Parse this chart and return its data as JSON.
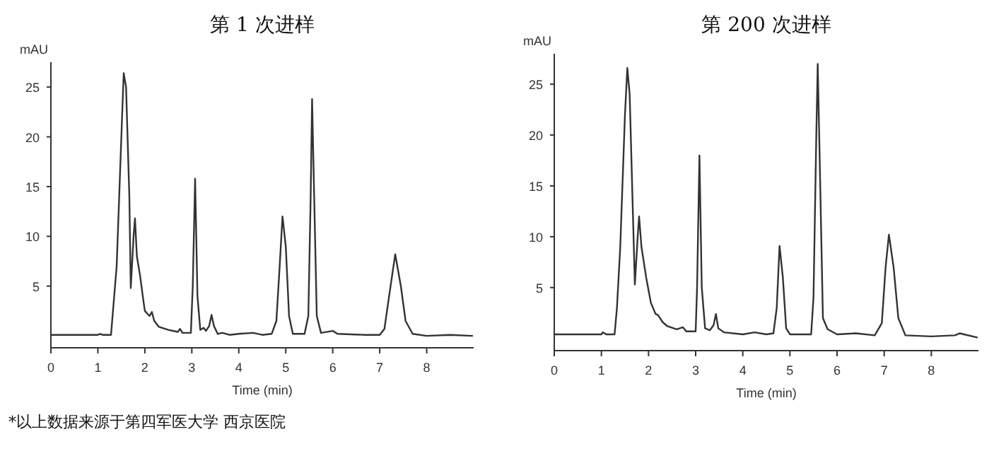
{
  "chart_data": [
    {
      "type": "line",
      "title": "第 1 次进样",
      "xlabel": "Time (min)",
      "ylabel": "mAU",
      "color": "#333333",
      "xlim": [
        0,
        9
      ],
      "ylim": [
        -1.2,
        27.5
      ],
      "xticks": [
        0,
        1,
        2,
        3,
        4,
        5,
        6,
        7,
        8
      ],
      "yticks": [
        5,
        10,
        15,
        20,
        25
      ],
      "annotations": [
        "*以上数据来源于第四军医大学  西京医院"
      ],
      "x": [
        0,
        1.0,
        1.05,
        1.1,
        1.28,
        1.33,
        1.4,
        1.5,
        1.55,
        1.6,
        1.67,
        1.7,
        1.76,
        1.79,
        1.83,
        1.9,
        1.97,
        2.0,
        2.1,
        2.15,
        2.2,
        2.3,
        2.5,
        2.7,
        2.75,
        2.8,
        2.98,
        3.02,
        3.07,
        3.12,
        3.18,
        3.25,
        3.3,
        3.37,
        3.42,
        3.47,
        3.55,
        3.65,
        3.8,
        4.0,
        4.3,
        4.5,
        4.7,
        4.8,
        4.87,
        4.93,
        5.0,
        5.07,
        5.15,
        5.4,
        5.48,
        5.53,
        5.56,
        5.6,
        5.66,
        5.75,
        6.0,
        6.1,
        6.7,
        7.0,
        7.1,
        7.2,
        7.33,
        7.45,
        7.55,
        7.7,
        8.0,
        8.5,
        8.97
      ],
      "values": [
        0.1,
        0.1,
        0.2,
        0.1,
        0.1,
        3,
        7,
        20,
        26.4,
        25,
        14,
        4.8,
        10,
        11.8,
        8,
        6,
        3.5,
        2.5,
        2.0,
        2.4,
        1.5,
        0.9,
        0.6,
        0.4,
        0.7,
        0.3,
        0.3,
        5,
        15.8,
        4,
        0.6,
        0.8,
        0.5,
        1.0,
        2.1,
        1.0,
        0.2,
        0.3,
        0.1,
        0.2,
        0.3,
        0.1,
        0.2,
        1.5,
        7,
        12.0,
        9,
        2,
        0.2,
        0.2,
        2,
        14,
        23.8,
        15,
        2,
        0.3,
        0.5,
        0.2,
        0.1,
        0.1,
        0.7,
        4,
        8.2,
        5,
        1.5,
        0.2,
        0,
        0.1,
        0
      ]
    },
    {
      "type": "line",
      "title": "第 200 次进样",
      "xlabel": "Time (min)",
      "ylabel": "mAU",
      "color": "#333333",
      "xlim": [
        0,
        9
      ],
      "ylim": [
        -1.2,
        28
      ],
      "xticks": [
        0,
        1,
        2,
        3,
        4,
        5,
        6,
        7,
        8
      ],
      "yticks": [
        5,
        10,
        15,
        20,
        25
      ],
      "x": [
        0,
        1.0,
        1.03,
        1.1,
        1.28,
        1.33,
        1.4,
        1.5,
        1.55,
        1.6,
        1.67,
        1.71,
        1.77,
        1.8,
        1.85,
        1.95,
        2.05,
        2.15,
        2.2,
        2.3,
        2.4,
        2.6,
        2.73,
        2.8,
        3.0,
        3.03,
        3.08,
        3.13,
        3.2,
        3.3,
        3.38,
        3.43,
        3.48,
        3.6,
        4.0,
        4.25,
        4.5,
        4.65,
        4.72,
        4.78,
        4.85,
        4.92,
        5.0,
        5.45,
        5.5,
        5.56,
        5.59,
        5.63,
        5.7,
        5.8,
        6.0,
        6.4,
        6.8,
        6.95,
        7.03,
        7.1,
        7.2,
        7.3,
        7.45,
        8.0,
        8.5,
        8.6,
        8.97
      ],
      "values": [
        0.4,
        0.4,
        0.6,
        0.4,
        0.4,
        3,
        9,
        22,
        26.6,
        24,
        12,
        5.3,
        10,
        12.0,
        9,
        6,
        3.5,
        2.4,
        2.3,
        1.6,
        1.2,
        0.9,
        1.1,
        0.7,
        0.7,
        5,
        18.0,
        5,
        1.0,
        0.8,
        1.3,
        2.4,
        1.0,
        0.6,
        0.4,
        0.6,
        0.4,
        0.5,
        3,
        9.1,
        6,
        1,
        0.4,
        0.4,
        4,
        20,
        27.0,
        18,
        2,
        0.9,
        0.4,
        0.5,
        0.3,
        1.5,
        7,
        10.2,
        7,
        2,
        0.3,
        0.2,
        0.3,
        0.5,
        0.1
      ]
    }
  ]
}
